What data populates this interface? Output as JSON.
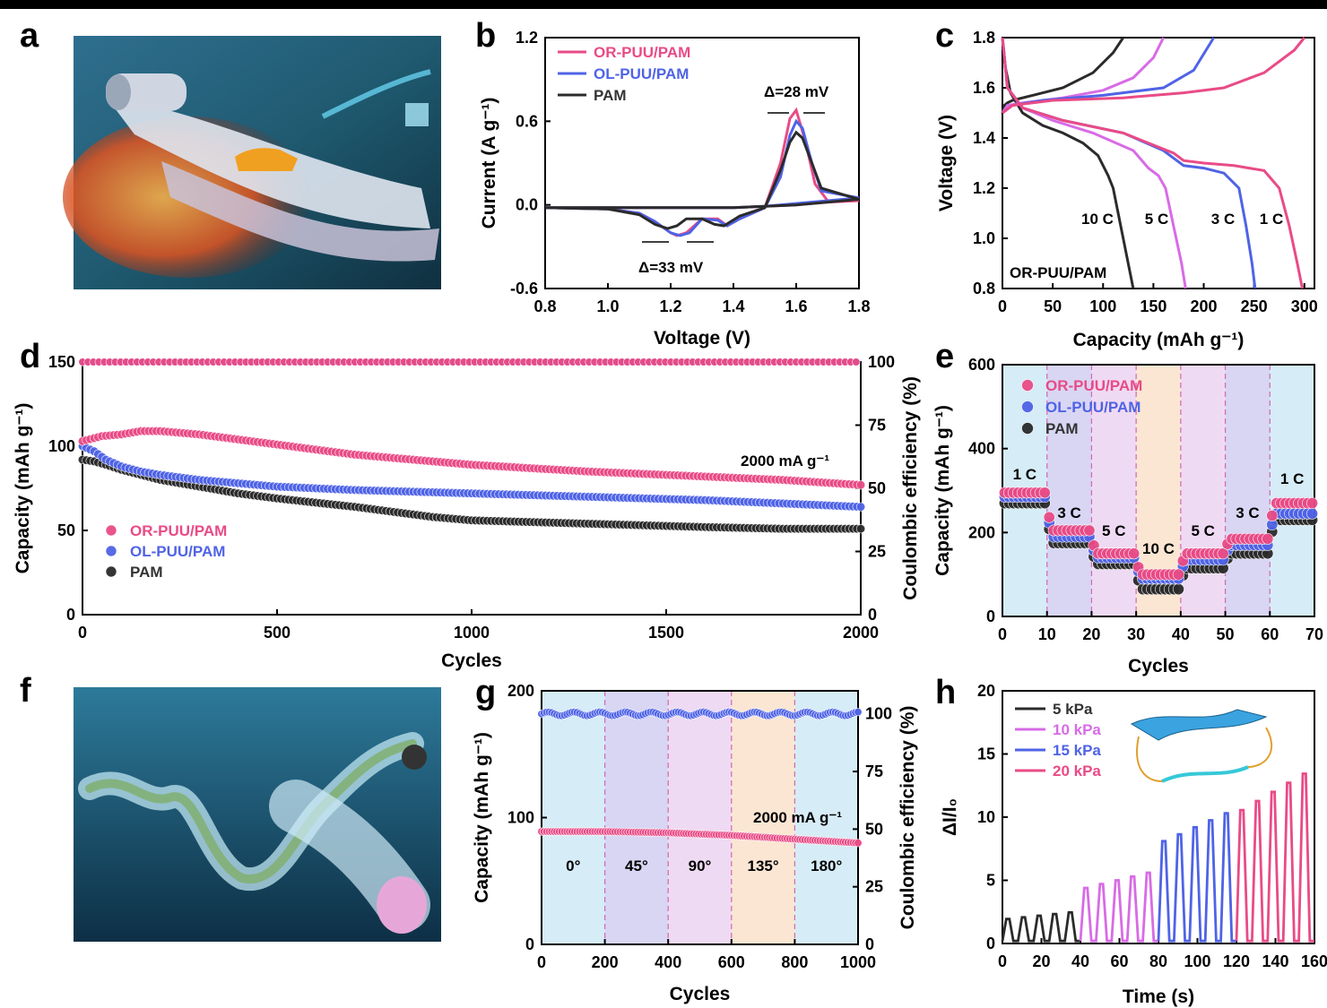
{
  "colors": {
    "pink": "#e94b86",
    "blue": "#4f63e6",
    "black": "#2b2b2b",
    "magenta": "#d86be6"
  },
  "panels": {
    "a": "a",
    "b": "b",
    "c": "c",
    "d": "d",
    "e": "e",
    "f": "f",
    "g": "g",
    "h": "h"
  },
  "images": {
    "a": {
      "icon": "battery-ribbon-illustration"
    },
    "f": {
      "icon": "fiber-battery-illustration"
    }
  },
  "chart_data": [
    {
      "id": "b",
      "type": "line",
      "xlabel": "Voltage (V)",
      "ylabel": "Current (A g⁻¹)",
      "xlim": [
        0.8,
        1.8
      ],
      "ylim": [
        -0.6,
        1.2
      ],
      "xticks": [
        "0.8",
        "1.0",
        "1.2",
        "1.4",
        "1.6",
        "1.8"
      ],
      "yticks": [
        "-0.6",
        "0.0",
        "0.6",
        "1.2"
      ],
      "series": [
        {
          "name": "OR-PUU/PAM",
          "color": "#e94b86",
          "x": [
            0.8,
            1.0,
            1.1,
            1.15,
            1.2,
            1.22,
            1.25,
            1.3,
            1.35,
            1.38,
            1.42,
            1.5,
            1.55,
            1.58,
            1.6,
            1.63,
            1.66,
            1.7,
            1.8,
            1.7,
            1.6,
            1.5,
            1.4,
            1.2,
            1.0,
            0.8
          ],
          "y": [
            -0.02,
            -0.03,
            -0.06,
            -0.12,
            -0.2,
            -0.22,
            -0.2,
            -0.1,
            -0.1,
            -0.15,
            -0.1,
            -0.02,
            0.3,
            0.62,
            0.68,
            0.45,
            0.15,
            0.03,
            0.03,
            0.02,
            0.0,
            -0.01,
            -0.02,
            -0.02,
            -0.02,
            -0.02
          ]
        },
        {
          "name": "OL-PUU/PAM",
          "color": "#4f63e6",
          "x": [
            0.8,
            1.0,
            1.1,
            1.15,
            1.2,
            1.23,
            1.26,
            1.3,
            1.35,
            1.38,
            1.42,
            1.5,
            1.55,
            1.58,
            1.6,
            1.62,
            1.65,
            1.68,
            1.8,
            1.7,
            1.6,
            1.5,
            1.4,
            1.2,
            1.0,
            0.8
          ],
          "y": [
            -0.02,
            -0.03,
            -0.06,
            -0.12,
            -0.2,
            -0.22,
            -0.2,
            -0.1,
            -0.11,
            -0.15,
            -0.1,
            -0.02,
            0.2,
            0.5,
            0.6,
            0.55,
            0.3,
            0.1,
            0.05,
            0.03,
            0.01,
            -0.01,
            -0.02,
            -0.02,
            -0.02,
            -0.02
          ]
        },
        {
          "name": "PAM",
          "color": "#2b2b2b",
          "x": [
            0.8,
            1.0,
            1.1,
            1.15,
            1.19,
            1.22,
            1.25,
            1.3,
            1.34,
            1.37,
            1.42,
            1.5,
            1.55,
            1.58,
            1.6,
            1.62,
            1.65,
            1.68,
            1.8,
            1.7,
            1.6,
            1.5,
            1.4,
            1.2,
            1.0,
            0.8
          ],
          "y": [
            -0.02,
            -0.03,
            -0.07,
            -0.14,
            -0.17,
            -0.15,
            -0.1,
            -0.1,
            -0.14,
            -0.15,
            -0.08,
            -0.02,
            0.25,
            0.45,
            0.52,
            0.48,
            0.3,
            0.12,
            0.04,
            0.02,
            0.0,
            -0.01,
            -0.02,
            -0.02,
            -0.02,
            -0.02
          ]
        }
      ],
      "annotations": [
        "Δ=28 mV",
        "Δ=33 mV"
      ]
    },
    {
      "id": "c",
      "type": "line",
      "xlabel": "Capacity (mAh g⁻¹)",
      "ylabel": "Voltage (V)",
      "xlim": [
        0,
        310
      ],
      "ylim": [
        0.8,
        1.8
      ],
      "xticks": [
        "0",
        "50",
        "100",
        "150",
        "200",
        "250",
        "300"
      ],
      "yticks": [
        "0.8",
        "1.0",
        "1.2",
        "1.4",
        "1.6",
        "1.8"
      ],
      "label": "OR-PUU/PAM",
      "series": [
        {
          "name": "10 C",
          "color": "#2b2b2b",
          "charge_x": [
            0,
            2,
            5,
            10,
            30,
            60,
            90,
            110,
            120
          ],
          "charge_y": [
            1.5,
            1.53,
            1.54,
            1.55,
            1.57,
            1.6,
            1.66,
            1.74,
            1.8
          ],
          "discharge_x": [
            0,
            3,
            8,
            20,
            40,
            60,
            80,
            95,
            105,
            110,
            115,
            120,
            125,
            130
          ],
          "discharge_y": [
            1.8,
            1.68,
            1.58,
            1.5,
            1.45,
            1.42,
            1.38,
            1.33,
            1.25,
            1.2,
            1.1,
            1.0,
            0.9,
            0.8
          ]
        },
        {
          "name": "5 C",
          "color": "#d86be6",
          "charge_x": [
            0,
            5,
            20,
            60,
            100,
            130,
            150,
            160
          ],
          "charge_y": [
            1.5,
            1.53,
            1.54,
            1.56,
            1.59,
            1.64,
            1.72,
            1.8
          ],
          "discharge_x": [
            0,
            5,
            20,
            50,
            90,
            130,
            145,
            155,
            162,
            170,
            178,
            182
          ],
          "discharge_y": [
            1.8,
            1.6,
            1.52,
            1.47,
            1.42,
            1.35,
            1.28,
            1.25,
            1.2,
            1.05,
            0.9,
            0.8
          ]
        },
        {
          "name": "3 C",
          "color": "#4f63e6",
          "charge_x": [
            0,
            10,
            40,
            100,
            160,
            190,
            210
          ],
          "charge_y": [
            1.5,
            1.53,
            1.55,
            1.57,
            1.6,
            1.67,
            1.8
          ],
          "discharge_x": [
            0,
            5,
            20,
            60,
            120,
            160,
            180,
            200,
            220,
            235,
            242,
            248,
            251
          ],
          "discharge_y": [
            1.8,
            1.6,
            1.52,
            1.47,
            1.42,
            1.35,
            1.29,
            1.28,
            1.26,
            1.2,
            1.05,
            0.9,
            0.8
          ]
        },
        {
          "name": "1 C",
          "color": "#e94b86",
          "charge_x": [
            0,
            10,
            50,
            120,
            180,
            220,
            260,
            290,
            300
          ],
          "charge_y": [
            1.5,
            1.53,
            1.55,
            1.56,
            1.58,
            1.6,
            1.66,
            1.75,
            1.8
          ],
          "discharge_x": [
            0,
            5,
            20,
            60,
            120,
            170,
            180,
            200,
            230,
            260,
            275,
            285,
            293,
            298
          ],
          "discharge_y": [
            1.8,
            1.6,
            1.52,
            1.47,
            1.42,
            1.34,
            1.31,
            1.3,
            1.29,
            1.27,
            1.2,
            1.05,
            0.9,
            0.8
          ]
        }
      ]
    },
    {
      "id": "d",
      "type": "scatter",
      "xlabel": "Cycles",
      "ylabel": "Capacity (mAh g⁻¹)",
      "y2label": "Coulombic efficiency (%)",
      "xlim": [
        0,
        2000
      ],
      "ylim": [
        0,
        150
      ],
      "y2lim": [
        0,
        100
      ],
      "xticks": [
        "0",
        "500",
        "1000",
        "1500",
        "2000"
      ],
      "yticks": [
        "0",
        "50",
        "100",
        "150"
      ],
      "y2ticks": [
        "0",
        "25",
        "50",
        "75",
        "100"
      ],
      "annotation": "2000 mA g⁻¹",
      "series": [
        {
          "name": "OR-PUU/PAM",
          "color": "#e94b86",
          "x": [
            0,
            50,
            100,
            150,
            200,
            300,
            400,
            500,
            700,
            1000,
            1300,
            1600,
            1800,
            2000
          ],
          "y": [
            103,
            106,
            107,
            109,
            109,
            107,
            104,
            101,
            95,
            89,
            85,
            82,
            80,
            77
          ],
          "ce": 100
        },
        {
          "name": "OL-PUU/PAM",
          "color": "#4f63e6",
          "x": [
            0,
            30,
            60,
            100,
            150,
            200,
            300,
            400,
            500,
            700,
            1000,
            1300,
            1600,
            1800,
            2000
          ],
          "y": [
            100,
            97,
            92,
            88,
            85,
            83,
            80,
            78,
            76,
            74,
            72,
            70,
            68,
            66,
            64
          ],
          "ce": 100
        },
        {
          "name": "PAM",
          "color": "#2b2b2b",
          "x": [
            0,
            30,
            60,
            100,
            200,
            300,
            400,
            500,
            700,
            900,
            1000,
            1300,
            1600,
            1800,
            2000
          ],
          "y": [
            92,
            91,
            89,
            86,
            80,
            76,
            72,
            69,
            64,
            58,
            56,
            54,
            52,
            51,
            51
          ]
        }
      ]
    },
    {
      "id": "e",
      "type": "scatter",
      "xlabel": "Cycles",
      "ylabel": "Capacity (mAh g⁻¹)",
      "xlim": [
        0,
        70
      ],
      "ylim": [
        0,
        600
      ],
      "xticks": [
        "0",
        "10",
        "20",
        "30",
        "40",
        "50",
        "60",
        "70"
      ],
      "yticks": [
        "0",
        "200",
        "400",
        "600"
      ],
      "rate_labels": [
        "1 C",
        "3 C",
        "5 C",
        "10 C",
        "5 C",
        "3 C",
        "1 C"
      ],
      "segments": [
        [
          0,
          10
        ],
        [
          10,
          20
        ],
        [
          20,
          30
        ],
        [
          30,
          40
        ],
        [
          40,
          50
        ],
        [
          50,
          60
        ],
        [
          60,
          70
        ]
      ],
      "segment_colors": [
        "#d6ecf7",
        "#d8d6f3",
        "#efdaf3",
        "#fbe6d3",
        "#efdaf3",
        "#d8d6f3",
        "#d6ecf7"
      ],
      "series": [
        {
          "name": "OR-PUU/PAM",
          "color": "#e94b86",
          "levels": [
            295,
            205,
            150,
            100,
            150,
            185,
            270
          ]
        },
        {
          "name": "OL-PUU/PAM",
          "color": "#4f63e6",
          "levels": [
            285,
            190,
            140,
            90,
            135,
            170,
            245
          ]
        },
        {
          "name": "PAM",
          "color": "#2b2b2b",
          "levels": [
            270,
            175,
            125,
            65,
            115,
            150,
            230
          ]
        }
      ]
    },
    {
      "id": "g",
      "type": "scatter",
      "xlabel": "Cycles",
      "ylabel": "Capacity (mAh g⁻¹)",
      "y2label": "Coulombic efficiency (%)",
      "xlim": [
        0,
        1000
      ],
      "ylim": [
        0,
        200
      ],
      "y2lim": [
        0,
        110
      ],
      "xticks": [
        "0",
        "200",
        "400",
        "600",
        "800",
        "1000"
      ],
      "yticks": [
        "0",
        "100",
        "200"
      ],
      "y2ticks": [
        "0",
        "25",
        "50",
        "75",
        "100"
      ],
      "annotation": "2000 mA g⁻¹",
      "angle_labels": [
        "0°",
        "45°",
        "90°",
        "135°",
        "180°"
      ],
      "segment_colors": [
        "#d6ecf7",
        "#d8d6f3",
        "#efdaf3",
        "#fbe6d3",
        "#d6ecf7"
      ],
      "series": [
        {
          "name": "capacity",
          "color": "#e94b86",
          "x": [
            0,
            200,
            400,
            600,
            800,
            1000
          ],
          "y": [
            89,
            89,
            88,
            86,
            83,
            80
          ]
        },
        {
          "name": "coulombic efficiency",
          "color": "#4f63e6",
          "x": [
            0,
            1000
          ],
          "y": [
            100,
            100
          ]
        }
      ]
    },
    {
      "id": "h",
      "type": "line",
      "xlabel": "Time (s)",
      "ylabel": "ΔI/I₀",
      "xlim": [
        0,
        160
      ],
      "ylim": [
        0,
        20
      ],
      "xticks": [
        "0",
        "20",
        "40",
        "60",
        "80",
        "100",
        "120",
        "140",
        "160"
      ],
      "yticks": [
        "0",
        "5",
        "10",
        "15",
        "20"
      ],
      "series": [
        {
          "name": "5  kPa",
          "color": "#2b2b2b",
          "t": [
            0,
            40
          ],
          "peak": 2.2
        },
        {
          "name": "10 kPa",
          "color": "#d86be6",
          "t": [
            40,
            80
          ],
          "peak": 5.0
        },
        {
          "name": "15 kPa",
          "color": "#4f63e6",
          "t": [
            80,
            120
          ],
          "peak": 9.2
        },
        {
          "name": "20 kPa",
          "color": "#e94b86",
          "t": [
            120,
            160
          ],
          "peak": 12.0
        }
      ]
    }
  ]
}
